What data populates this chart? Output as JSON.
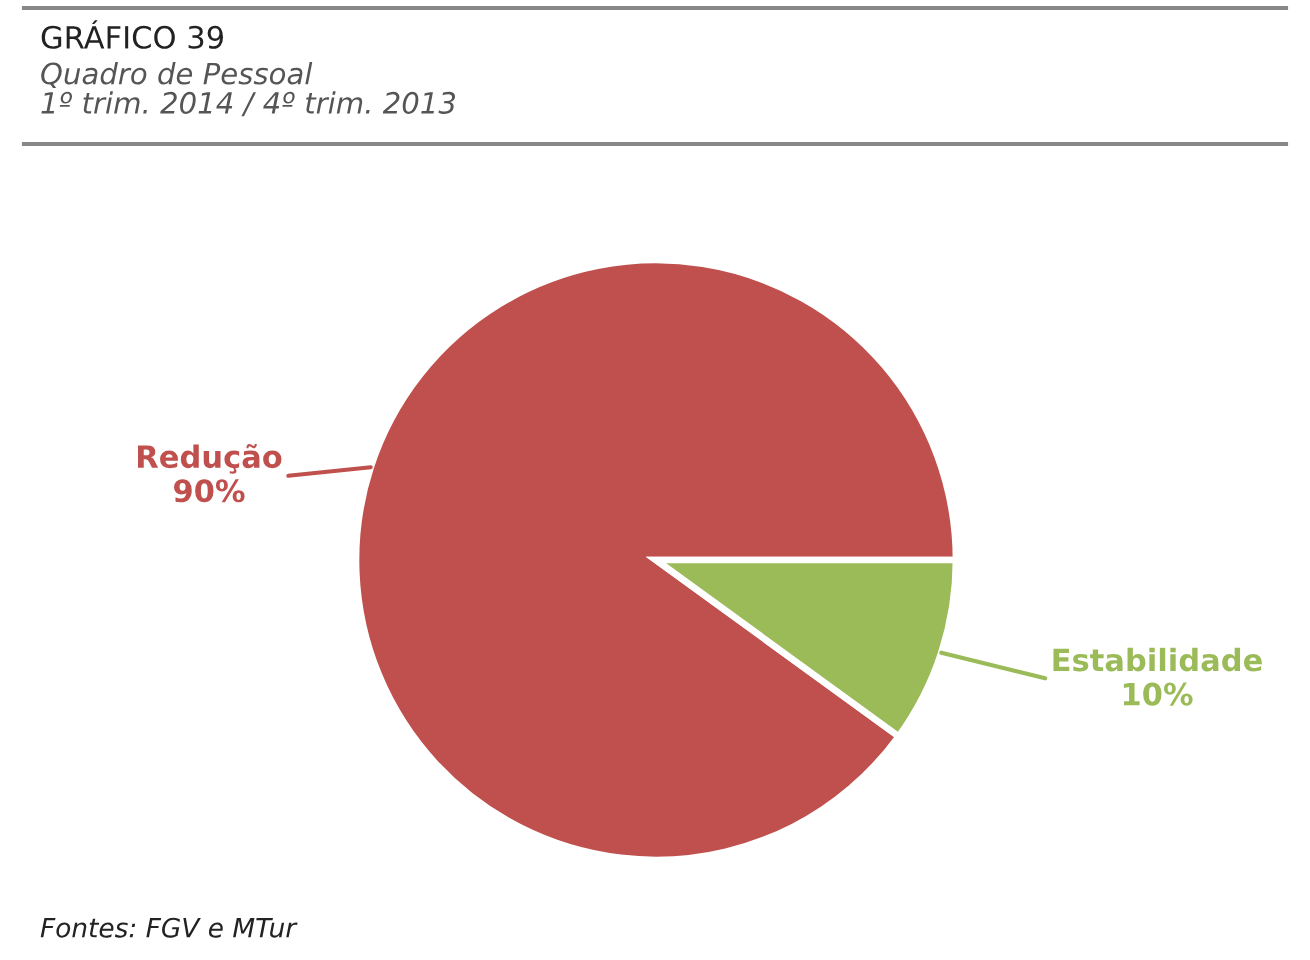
{
  "chart_data": {
    "type": "pie",
    "title": "GRÁFICO 39",
    "subtitle": "Quadro de Pessoal\n1º trim. 2014 / 4º trim. 2013",
    "categories": [
      "Redução",
      "Estabilidade"
    ],
    "values": [
      90,
      10
    ],
    "value_labels": [
      "90%",
      "10%"
    ],
    "colors": [
      "#c0504d",
      "#9bbb59"
    ],
    "annotations": [
      "Fontes: FGV e MTur"
    ]
  }
}
